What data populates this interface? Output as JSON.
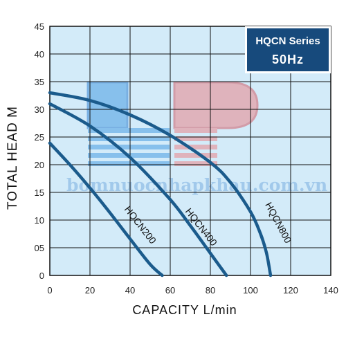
{
  "chart_data": {
    "type": "line",
    "xlabel": "CAPACITY L/min",
    "ylabel": "TOTAL HEAD M",
    "xlim": [
      0,
      140
    ],
    "ylim": [
      0,
      45
    ],
    "xticks": [
      "0",
      "20",
      "40",
      "60",
      "80",
      "100",
      "120",
      "140"
    ],
    "yticks": [
      "0",
      "05",
      "10",
      "15",
      "20",
      "25",
      "30",
      "35",
      "40",
      "45"
    ],
    "grid": true,
    "legend": {
      "position": "top-right",
      "line1": "HQCN Series",
      "line2": "50Hz"
    },
    "watermark": "bomnuocnhapkhau.com.vn",
    "colors": {
      "plot_bg": "#d3ebf9",
      "grid": "#111111",
      "curve": "#1b5b8c",
      "legend_bg": "#174a7c"
    },
    "series": [
      {
        "label": "HQCN200",
        "x": [
          0,
          10,
          20,
          30,
          40,
          50,
          56
        ],
        "y": [
          23.9,
          20.0,
          15.8,
          11.3,
          6.6,
          2.0,
          0
        ]
      },
      {
        "label": "HQCN400",
        "x": [
          0,
          20,
          40,
          60,
          70,
          80,
          86,
          88
        ],
        "y": [
          31.0,
          27.0,
          21.3,
          13.7,
          9.0,
          4.0,
          1.0,
          0
        ]
      },
      {
        "label": "HQCN800",
        "x": [
          0,
          20,
          40,
          60,
          80,
          90,
          100,
          105,
          108,
          110
        ],
        "y": [
          33.0,
          31.6,
          29.0,
          25.3,
          20.4,
          16.8,
          11.5,
          7.5,
          4.0,
          0
        ]
      }
    ]
  }
}
